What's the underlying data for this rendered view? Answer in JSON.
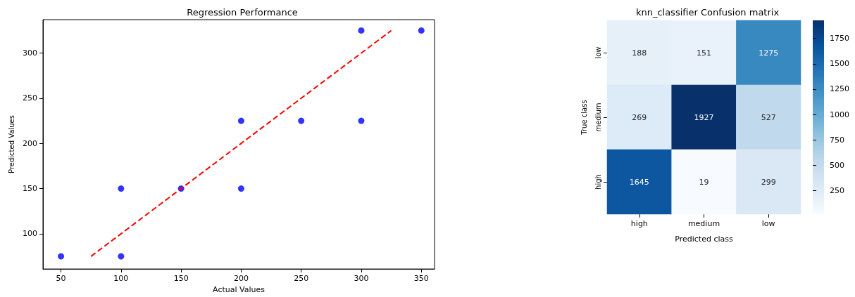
{
  "chart_data": [
    {
      "type": "scatter",
      "title": "Regression Performance",
      "xlabel": "Actual Values",
      "ylabel": "Predicted Values",
      "xlim": [
        35,
        361
      ],
      "ylim": [
        61,
        337
      ],
      "xticks": [
        50,
        100,
        150,
        200,
        250,
        300,
        350
      ],
      "yticks": [
        100,
        150,
        200,
        250,
        300
      ],
      "grid": false,
      "marker": "circle",
      "series": [
        {
          "color": "#0000ff",
          "x": [
            50,
            100,
            100,
            150,
            200,
            200,
            250,
            300,
            300,
            350
          ],
          "values": [
            75,
            75,
            150,
            150,
            150,
            225,
            225,
            225,
            325,
            325
          ]
        },
        {
          "type": "line",
          "color": "#ff0000",
          "x": [
            75,
            325
          ],
          "values": [
            75,
            325
          ],
          "line_style": "dashed",
          "marker": "none"
        }
      ]
    },
    {
      "type": "heatmap",
      "title": "knn_classifier Confusion matrix",
      "xlabel": "Predicted class",
      "ylabel": "True class",
      "categories": [
        "high",
        "medium",
        "low"
      ],
      "y_categories": [
        "low",
        "medium",
        "high"
      ],
      "cells": [
        [
          188,
          151,
          1275
        ],
        [
          269,
          1927,
          527
        ],
        [
          1645,
          19,
          299
        ]
      ],
      "clim": [
        19,
        1927
      ],
      "cticks": [
        250,
        500,
        750,
        1000,
        1250,
        1500,
        1750
      ],
      "data_labels": true
    }
  ]
}
